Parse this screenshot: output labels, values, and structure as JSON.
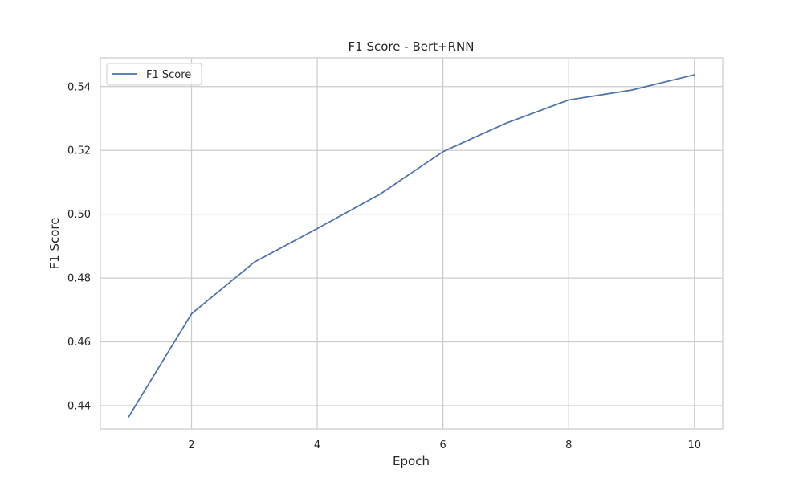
{
  "chart_data": {
    "type": "line",
    "title": "F1 Score - Bert+RNN",
    "xlabel": "Epoch",
    "ylabel": "F1 Score",
    "x": [
      1,
      2,
      3,
      4,
      5,
      6,
      7,
      8,
      9,
      10
    ],
    "series": [
      {
        "name": "F1 Score",
        "color": "#4c72b0",
        "values": [
          0.4365,
          0.4688,
          0.485,
          0.4955,
          0.5063,
          0.5196,
          0.5285,
          0.5358,
          0.5389,
          0.5437
        ]
      }
    ],
    "xlim": [
      0.55,
      10.45
    ],
    "ylim": [
      0.4327,
      0.549
    ],
    "xticks": [
      2,
      4,
      6,
      8,
      10
    ],
    "xtick_labels": [
      "2",
      "4",
      "6",
      "8",
      "10"
    ],
    "yticks": [
      0.44,
      0.46,
      0.48,
      0.5,
      0.52,
      0.54
    ],
    "ytick_labels": [
      "0.44",
      "0.46",
      "0.48",
      "0.50",
      "0.52",
      "0.54"
    ],
    "grid": true,
    "grid_color": "#cccccc",
    "legend_position": "upper left"
  }
}
